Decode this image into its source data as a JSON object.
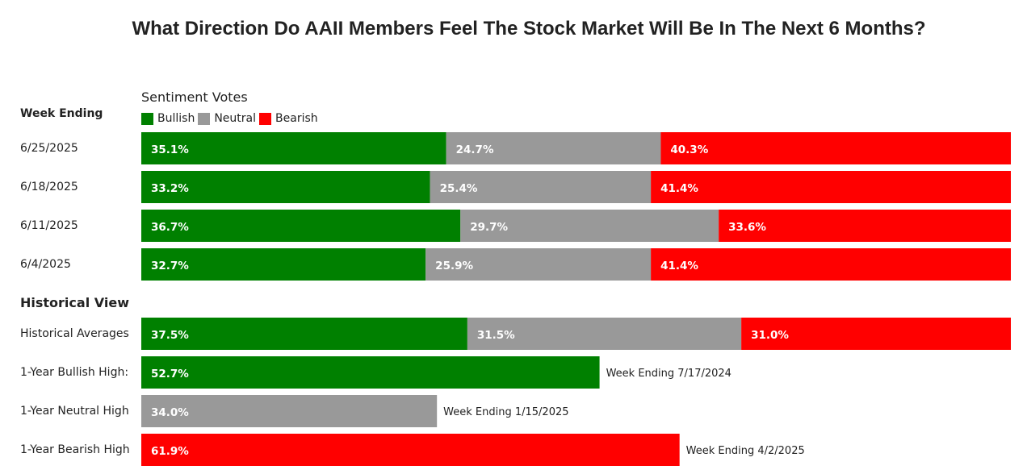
{
  "chart_data": {
    "type": "bar",
    "title": "What Direction Do AAII Members Feel The Stock Market Will Be In The Next 6 Months?",
    "sentiment_title": "Sentiment Votes",
    "row_header": "Week Ending",
    "section_header": "Historical View",
    "legend": [
      {
        "name": "Bullish",
        "color": "#008000"
      },
      {
        "name": "Neutral",
        "color": "#999999"
      },
      {
        "name": "Bearish",
        "color": "#ff0000"
      }
    ],
    "weekly": [
      {
        "label": "6/25/2025",
        "values": [
          35.1,
          24.7,
          40.3
        ],
        "text": [
          "35.1%",
          "24.7%",
          "40.3%"
        ]
      },
      {
        "label": "6/18/2025",
        "values": [
          33.2,
          25.4,
          41.4
        ],
        "text": [
          "33.2%",
          "25.4%",
          "41.4%"
        ]
      },
      {
        "label": "6/11/2025",
        "values": [
          36.7,
          29.7,
          33.6
        ],
        "text": [
          "36.7%",
          "29.7%",
          "33.6%"
        ]
      },
      {
        "label": "6/4/2025",
        "values": [
          32.7,
          25.9,
          41.4
        ],
        "text": [
          "32.7%",
          "25.9%",
          "41.4%"
        ]
      }
    ],
    "historical": [
      {
        "label": "Historical Averages",
        "values": [
          37.5,
          31.5,
          31.0
        ],
        "text": [
          "37.5%",
          "31.5%",
          "31.0%"
        ]
      }
    ],
    "highs": [
      {
        "label": "1-Year Bullish High:",
        "series": "Bullish",
        "value": 52.7,
        "text": "52.7%",
        "note": "Week Ending 7/17/2024"
      },
      {
        "label": "1-Year Neutral High",
        "series": "Neutral",
        "value": 34.0,
        "text": "34.0%",
        "note": "Week Ending 1/15/2025"
      },
      {
        "label": "1-Year Bearish High",
        "series": "Bearish",
        "value": 61.9,
        "text": "61.9%",
        "note": "Week Ending 4/2/2025"
      }
    ]
  }
}
